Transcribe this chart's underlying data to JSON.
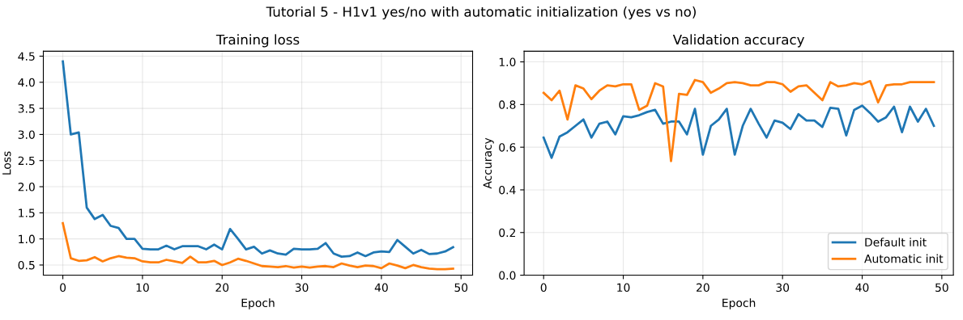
{
  "chart_data": [
    {
      "type": "line",
      "annotations": [
        "Tutorial 5 - H1v1 yes/no with automatic initialization (yes vs no)"
      ],
      "title": "Training loss",
      "xlabel": "Epoch",
      "ylabel": "Loss",
      "x": [
        0,
        1,
        2,
        3,
        4,
        5,
        6,
        7,
        8,
        9,
        10,
        11,
        12,
        13,
        14,
        15,
        16,
        17,
        18,
        19,
        20,
        21,
        22,
        23,
        24,
        25,
        26,
        27,
        28,
        29,
        30,
        31,
        32,
        33,
        34,
        35,
        36,
        37,
        38,
        39,
        40,
        41,
        42,
        43,
        44,
        45,
        46,
        47,
        48,
        49
      ],
      "series": [
        {
          "color": "#1f77b4",
          "values": [
            4.4,
            3.0,
            3.04,
            1.6,
            1.38,
            1.46,
            1.25,
            1.21,
            1.0,
            1.0,
            0.81,
            0.8,
            0.8,
            0.87,
            0.8,
            0.86,
            0.86,
            0.86,
            0.8,
            0.89,
            0.8,
            1.19,
            1.0,
            0.8,
            0.85,
            0.72,
            0.78,
            0.72,
            0.7,
            0.81,
            0.8,
            0.8,
            0.81,
            0.92,
            0.72,
            0.66,
            0.67,
            0.74,
            0.67,
            0.74,
            0.76,
            0.75,
            0.98,
            0.85,
            0.72,
            0.79,
            0.71,
            0.72,
            0.76,
            0.84
          ]
        },
        {
          "color": "#ff7f0e",
          "values": [
            1.3,
            0.63,
            0.58,
            0.59,
            0.65,
            0.57,
            0.63,
            0.67,
            0.64,
            0.63,
            0.57,
            0.55,
            0.55,
            0.6,
            0.57,
            0.54,
            0.66,
            0.55,
            0.55,
            0.58,
            0.5,
            0.55,
            0.62,
            0.58,
            0.53,
            0.48,
            0.47,
            0.46,
            0.48,
            0.45,
            0.47,
            0.45,
            0.47,
            0.48,
            0.46,
            0.53,
            0.49,
            0.46,
            0.49,
            0.48,
            0.44,
            0.53,
            0.49,
            0.44,
            0.5,
            0.46,
            0.43,
            0.42,
            0.42,
            0.43
          ]
        }
      ],
      "xlim": [
        -2.45,
        51.45
      ],
      "xticks": [
        0,
        10,
        20,
        30,
        40,
        50
      ],
      "ylim": [
        0.305,
        4.595
      ],
      "yticks": [
        {
          "value": 0.5,
          "label": "0.5"
        },
        {
          "value": 1.0,
          "label": "1.0"
        },
        {
          "value": 1.5,
          "label": "1.5"
        },
        {
          "value": 2.0,
          "label": "2.0"
        },
        {
          "value": 2.5,
          "label": "2.5"
        },
        {
          "value": 3.0,
          "label": "3.0"
        },
        {
          "value": 3.5,
          "label": "3.5"
        },
        {
          "value": 4.0,
          "label": "4.0"
        },
        {
          "value": 4.5,
          "label": "4.5"
        }
      ],
      "grid": true,
      "line_style": "solid",
      "marker": "none"
    },
    {
      "type": "line",
      "title": "Validation accuracy",
      "xlabel": "Epoch",
      "ylabel": "Accuracy",
      "x": [
        0,
        1,
        2,
        3,
        4,
        5,
        6,
        7,
        8,
        9,
        10,
        11,
        12,
        13,
        14,
        15,
        16,
        17,
        18,
        19,
        20,
        21,
        22,
        23,
        24,
        25,
        26,
        27,
        28,
        29,
        30,
        31,
        32,
        33,
        34,
        35,
        36,
        37,
        38,
        39,
        40,
        41,
        42,
        43,
        44,
        45,
        46,
        47,
        48,
        49
      ],
      "series": [
        {
          "name": "Default init",
          "color": "#1f77b4",
          "values": [
            0.645,
            0.55,
            0.65,
            0.67,
            0.7,
            0.73,
            0.645,
            0.71,
            0.72,
            0.66,
            0.745,
            0.74,
            0.75,
            0.765,
            0.775,
            0.71,
            0.72,
            0.72,
            0.66,
            0.78,
            0.565,
            0.7,
            0.73,
            0.78,
            0.565,
            0.7,
            0.78,
            0.71,
            0.645,
            0.725,
            0.715,
            0.685,
            0.755,
            0.725,
            0.725,
            0.695,
            0.785,
            0.78,
            0.655,
            0.775,
            0.795,
            0.76,
            0.72,
            0.74,
            0.79,
            0.67,
            0.79,
            0.72,
            0.78,
            0.7
          ]
        },
        {
          "name": "Automatic init",
          "color": "#ff7f0e",
          "values": [
            0.855,
            0.82,
            0.865,
            0.73,
            0.89,
            0.875,
            0.825,
            0.865,
            0.89,
            0.885,
            0.895,
            0.895,
            0.775,
            0.795,
            0.9,
            0.885,
            0.535,
            0.85,
            0.845,
            0.915,
            0.905,
            0.855,
            0.875,
            0.9,
            0.905,
            0.9,
            0.89,
            0.89,
            0.905,
            0.905,
            0.895,
            0.86,
            0.885,
            0.89,
            0.855,
            0.82,
            0.905,
            0.885,
            0.89,
            0.9,
            0.895,
            0.91,
            0.81,
            0.89,
            0.895,
            0.895,
            0.905,
            0.905,
            0.905,
            0.905
          ]
        }
      ],
      "xlim": [
        -2.45,
        51.45
      ],
      "xticks": [
        0,
        10,
        20,
        30,
        40,
        50
      ],
      "ylim": [
        0,
        1.05
      ],
      "yticks": [
        {
          "value": 0,
          "label": "0.0"
        },
        {
          "value": 0.2,
          "label": "0.2"
        },
        {
          "value": 0.4,
          "label": "0.4"
        },
        {
          "value": 0.6,
          "label": "0.6"
        },
        {
          "value": 0.8,
          "label": "0.8"
        },
        {
          "value": 1.0,
          "label": "1.0"
        }
      ],
      "grid": true,
      "legend": "lower right",
      "line_style": "solid",
      "marker": "none"
    }
  ]
}
